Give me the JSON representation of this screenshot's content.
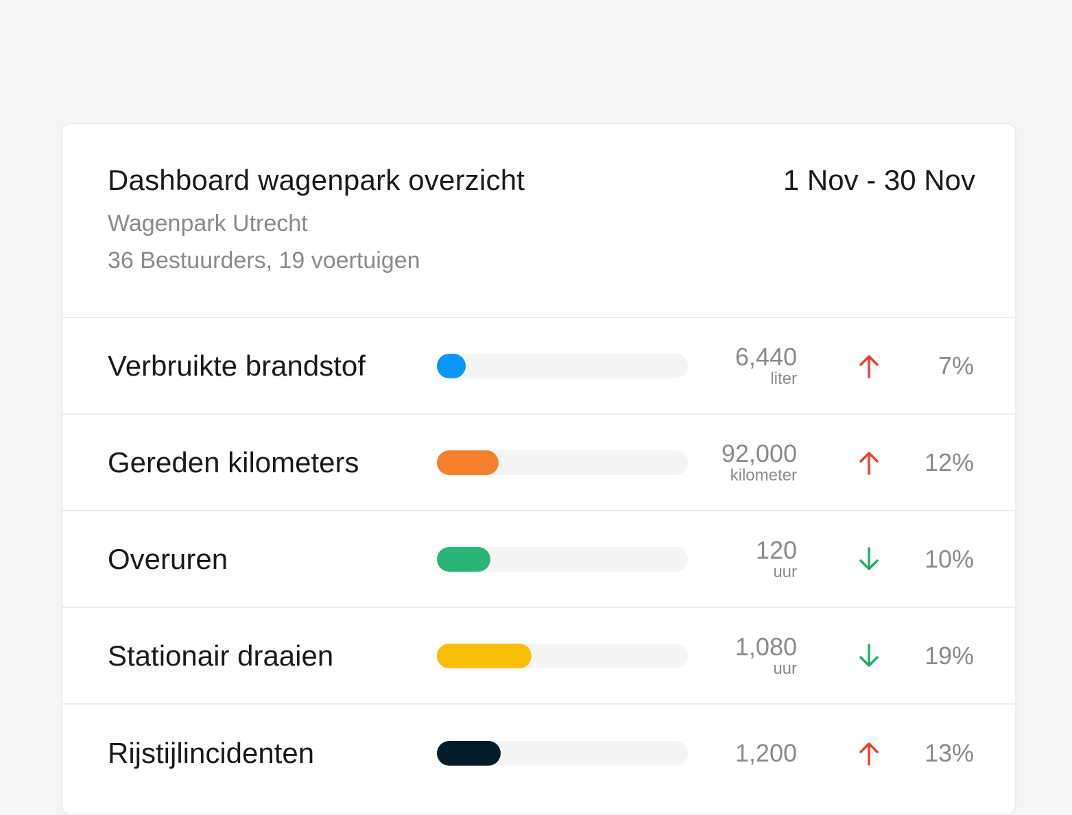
{
  "header": {
    "title": "Dashboard wagenpark overzicht",
    "date_range": "1 Nov - 30 Nov",
    "subtitle": "Wagenpark Utrecht",
    "meta": "36 Bestuurders, 19 voertuigen"
  },
  "colors": {
    "up": "#e8412c",
    "down": "#2aa869"
  },
  "metrics": [
    {
      "label": "Verbruikte brandstof",
      "value": "6,440",
      "unit": "liter",
      "trend": "up",
      "trend_icon": "arrow-up-icon",
      "percent": "7%",
      "fill_fraction": 0.115,
      "color": "#0a96ff"
    },
    {
      "label": "Gereden kilometers",
      "value": "92,000",
      "unit": "kilometer",
      "trend": "up",
      "trend_icon": "arrow-up-icon",
      "percent": "12%",
      "fill_fraction": 0.246,
      "color": "#f47f2c"
    },
    {
      "label": "Overuren",
      "value": "120",
      "unit": "uur",
      "trend": "down",
      "trend_icon": "arrow-down-icon",
      "percent": "10%",
      "fill_fraction": 0.213,
      "color": "#2cb476"
    },
    {
      "label": "Stationair draaien",
      "value": "1,080",
      "unit": "uur",
      "trend": "down",
      "trend_icon": "arrow-down-icon",
      "percent": "19%",
      "fill_fraction": 0.377,
      "color": "#f8bf07"
    },
    {
      "label": "Rijstijlincidenten",
      "value": "1,200",
      "unit": "",
      "trend": "up",
      "trend_icon": "arrow-up-icon",
      "percent": "13%",
      "fill_fraction": 0.254,
      "color": "#051c2a"
    }
  ]
}
